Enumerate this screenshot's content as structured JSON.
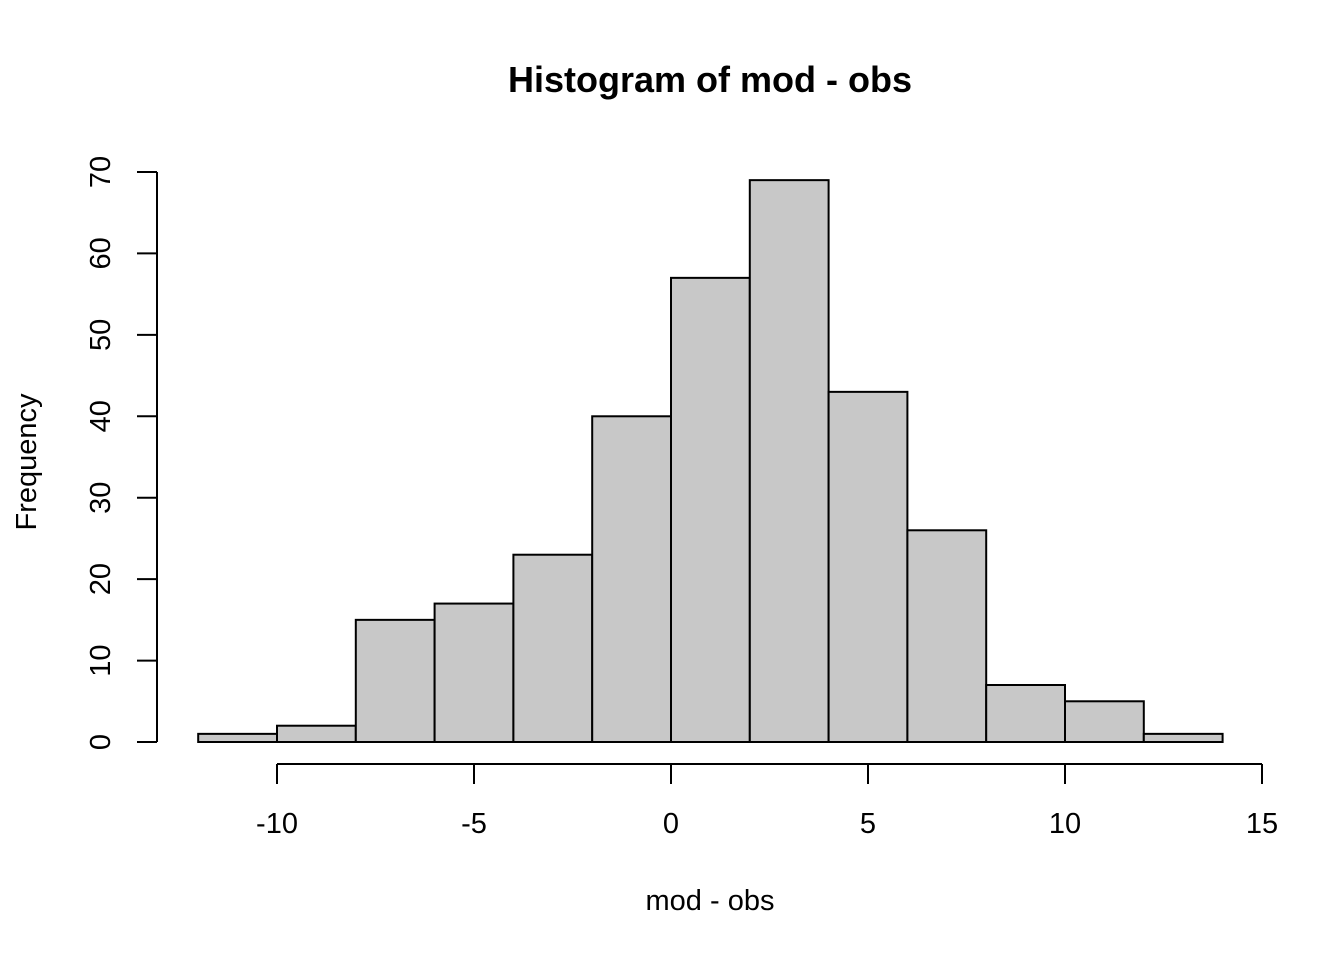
{
  "chart_data": {
    "type": "bar",
    "title": "Histogram of mod - obs",
    "xlabel": "mod - obs",
    "ylabel": "Frequency",
    "bins": [
      {
        "start": -12,
        "end": -10,
        "count": 1
      },
      {
        "start": -10,
        "end": -8,
        "count": 2
      },
      {
        "start": -8,
        "end": -6,
        "count": 15
      },
      {
        "start": -6,
        "end": -4,
        "count": 17
      },
      {
        "start": -4,
        "end": -2,
        "count": 23
      },
      {
        "start": -2,
        "end": 0,
        "count": 40
      },
      {
        "start": 0,
        "end": 2,
        "count": 57
      },
      {
        "start": 2,
        "end": 4,
        "count": 69
      },
      {
        "start": 4,
        "end": 6,
        "count": 43
      },
      {
        "start": 6,
        "end": 8,
        "count": 26
      },
      {
        "start": 8,
        "end": 10,
        "count": 7
      },
      {
        "start": 10,
        "end": 12,
        "count": 5
      },
      {
        "start": 12,
        "end": 14,
        "count": 1
      }
    ],
    "x_ticks": [
      "-10",
      "-5",
      "0",
      "5",
      "10",
      "15"
    ],
    "x_tick_values": [
      -10,
      -5,
      0,
      5,
      10,
      15
    ],
    "y_ticks": [
      "0",
      "10",
      "20",
      "30",
      "40",
      "50",
      "60",
      "70"
    ],
    "y_tick_values": [
      0,
      10,
      20,
      30,
      40,
      50,
      60,
      70
    ],
    "xlim": [
      -12,
      14
    ],
    "ylim": [
      0,
      70
    ],
    "fill_color": "#c8c8c8",
    "edge_color": "#000000",
    "grid": false
  }
}
